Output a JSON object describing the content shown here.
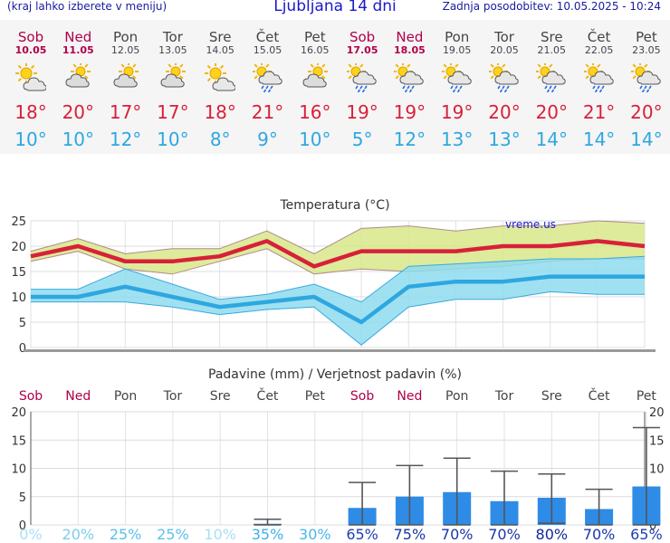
{
  "header": {
    "left_note": "(kraj lahko izberete v meniju)",
    "title": "Ljubljana 14 dni",
    "updated": "Zadnja posodobitev: 10.05.2025 - 10:24"
  },
  "days": [
    {
      "name": "Sob",
      "date": "10.05",
      "weekend": true,
      "icon": "sun-cloud-icon",
      "tmax": "18",
      "tmin": "10"
    },
    {
      "name": "Ned",
      "date": "11.05",
      "weekend": true,
      "icon": "cloud-sun-icon",
      "tmax": "20",
      "tmin": "10"
    },
    {
      "name": "Pon",
      "date": "12.05",
      "weekend": false,
      "icon": "cloud-sun-icon",
      "tmax": "17",
      "tmin": "12"
    },
    {
      "name": "Tor",
      "date": "13.05",
      "weekend": false,
      "icon": "cloud-sun-icon",
      "tmax": "17",
      "tmin": "10"
    },
    {
      "name": "Sre",
      "date": "14.05",
      "weekend": false,
      "icon": "sun-cloud-icon",
      "tmax": "18",
      "tmin": "8"
    },
    {
      "name": "Čet",
      "date": "15.05",
      "weekend": false,
      "icon": "sun-rain-cloud-icon",
      "tmax": "21",
      "tmin": "9"
    },
    {
      "name": "Pet",
      "date": "16.05",
      "weekend": false,
      "icon": "cloud-sun-icon",
      "tmax": "16",
      "tmin": "10"
    },
    {
      "name": "Sob",
      "date": "17.05",
      "weekend": true,
      "icon": "sun-rain-cloud-icon",
      "tmax": "19",
      "tmin": "5"
    },
    {
      "name": "Ned",
      "date": "18.05",
      "weekend": true,
      "icon": "sun-rain-cloud-icon",
      "tmax": "19",
      "tmin": "12"
    },
    {
      "name": "Pon",
      "date": "19.05",
      "weekend": false,
      "icon": "sun-rain-cloud-icon",
      "tmax": "19",
      "tmin": "13"
    },
    {
      "name": "Tor",
      "date": "20.05",
      "weekend": false,
      "icon": "sun-rain-cloud-icon",
      "tmax": "20",
      "tmin": "13"
    },
    {
      "name": "Sre",
      "date": "21.05",
      "weekend": false,
      "icon": "sun-rain-cloud-icon",
      "tmax": "20",
      "tmin": "14"
    },
    {
      "name": "Čet",
      "date": "22.05",
      "weekend": false,
      "icon": "sun-rain-cloud-icon",
      "tmax": "21",
      "tmin": "14"
    },
    {
      "name": "Pet",
      "date": "23.05",
      "weekend": false,
      "icon": "sun-rain-cloud-icon",
      "tmax": "20",
      "tmin": "14"
    }
  ],
  "degree_symbol": "°",
  "colors": {
    "weekend": "#b0004a",
    "weekday": "#444444",
    "tmax": "#d8203a",
    "tmin": "#2ea7e0",
    "tmax_band": "#d7e88a",
    "tmin_band": "#8fdcef",
    "precip_bar": "#2e8be6"
  },
  "chart_data": [
    {
      "type": "line",
      "title": "Temperatura (°C)",
      "watermark": "vreme.us",
      "ylim": [
        0,
        25
      ],
      "yticks": [
        0,
        5,
        10,
        15,
        20,
        25
      ],
      "grid": true,
      "x_count": 14,
      "series": [
        {
          "name": "",
          "role": "tmax",
          "values": [
            18,
            20,
            17,
            17,
            18,
            21,
            16,
            19,
            19,
            19,
            20,
            20,
            21,
            20
          ],
          "low": [
            17,
            19,
            15.5,
            14.5,
            17,
            19.5,
            14.5,
            15.5,
            15,
            15.5,
            16,
            17,
            17.5,
            17.5
          ],
          "high": [
            19,
            21.5,
            18.5,
            19.5,
            19.5,
            23,
            18.5,
            23.5,
            24,
            23,
            24,
            24,
            25,
            24.5
          ]
        },
        {
          "name": "",
          "role": "tmin",
          "values": [
            10,
            10,
            12,
            10,
            8,
            9,
            10,
            5,
            12,
            13,
            13,
            14,
            14,
            14
          ],
          "low": [
            9,
            9,
            9,
            8,
            6.5,
            7.5,
            8,
            0.5,
            8,
            9.5,
            9.5,
            11,
            10.5,
            10.5
          ],
          "high": [
            11.5,
            11.5,
            15.5,
            12.5,
            9.5,
            10.5,
            12.5,
            9,
            16,
            16.5,
            17,
            17.5,
            17.5,
            18
          ]
        }
      ]
    },
    {
      "type": "bar",
      "title": "Padavine (mm) / Verjetnost padavin (%)",
      "ylim": [
        0,
        20
      ],
      "yticks": [
        0,
        5,
        10,
        15,
        20
      ],
      "grid": true,
      "categories": [
        "Sob",
        "Ned",
        "Pon",
        "Tor",
        "Sre",
        "Čet",
        "Pet",
        "Sob",
        "Ned",
        "Pon",
        "Tor",
        "Sre",
        "Čet",
        "Pet"
      ],
      "weekend": [
        true,
        true,
        false,
        false,
        false,
        false,
        false,
        true,
        true,
        false,
        false,
        false,
        false,
        false
      ],
      "values": [
        0,
        0,
        0,
        0,
        0,
        0.2,
        0,
        3,
        5,
        5.8,
        4.2,
        4.8,
        2.8,
        6.8
      ],
      "err_low": [
        0,
        0,
        0,
        0,
        0,
        0,
        0,
        0,
        0,
        0,
        0,
        0.3,
        0,
        0
      ],
      "err_high": [
        0,
        0,
        0,
        0,
        0,
        1,
        0,
        7.5,
        10.5,
        11.8,
        9.5,
        9,
        6.3,
        17.2
      ],
      "probability": [
        "0%",
        "20%",
        "25%",
        "25%",
        "10%",
        "35%",
        "30%",
        "65%",
        "75%",
        "70%",
        "70%",
        "80%",
        "70%",
        "65%"
      ],
      "probability_colors": [
        "#aadff4",
        "#7ccdf0",
        "#5cc0ec",
        "#5cc0ec",
        "#aadff4",
        "#3fb0e6",
        "#4ab7ea",
        "#1f3fb0",
        "#1a36a8",
        "#1a36a8",
        "#1a36a8",
        "#12289a",
        "#1a36a8",
        "#1f3fb0"
      ]
    }
  ]
}
